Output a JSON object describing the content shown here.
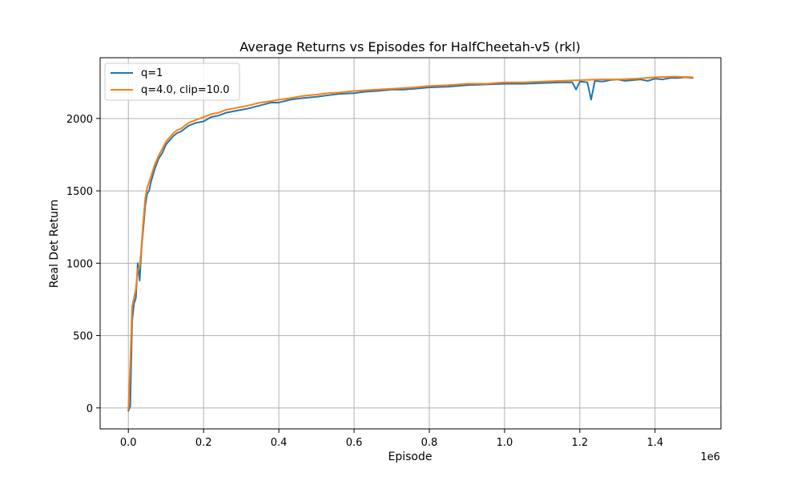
{
  "chart_data": {
    "type": "line",
    "title": "Average Returns vs Episodes for HalfCheetah-v5 (rkl)",
    "xlabel": "Episode",
    "ylabel": "Real Det Return",
    "x_offset_label": "1e6",
    "xlim": [
      -0.075,
      1.575
    ],
    "ylim": [
      -145,
      2420
    ],
    "x_ticks": [
      0.0,
      0.2,
      0.4,
      0.6,
      0.8,
      1.0,
      1.2,
      1.4
    ],
    "x_tick_labels": [
      "0.0",
      "0.2",
      "0.4",
      "0.6",
      "0.8",
      "1.0",
      "1.2",
      "1.4"
    ],
    "y_ticks": [
      0,
      500,
      1000,
      1500,
      2000
    ],
    "y_tick_labels": [
      "0",
      "500",
      "1000",
      "1500",
      "2000"
    ],
    "grid": true,
    "legend_position": "top-left",
    "series": [
      {
        "name": "q=1",
        "color": "#1f77b4",
        "x": [
          0.0,
          0.005,
          0.01,
          0.015,
          0.02,
          0.025,
          0.03,
          0.035,
          0.04,
          0.045,
          0.05,
          0.055,
          0.06,
          0.07,
          0.08,
          0.09,
          0.1,
          0.11,
          0.12,
          0.13,
          0.14,
          0.15,
          0.16,
          0.18,
          0.2,
          0.22,
          0.24,
          0.26,
          0.28,
          0.3,
          0.32,
          0.35,
          0.38,
          0.4,
          0.43,
          0.46,
          0.5,
          0.53,
          0.56,
          0.6,
          0.63,
          0.66,
          0.7,
          0.73,
          0.76,
          0.8,
          0.85,
          0.9,
          0.95,
          1.0,
          1.05,
          1.1,
          1.15,
          1.18,
          1.19,
          1.2,
          1.22,
          1.23,
          1.24,
          1.26,
          1.28,
          1.3,
          1.32,
          1.34,
          1.36,
          1.38,
          1.4,
          1.42,
          1.44,
          1.46,
          1.48,
          1.5
        ],
        "y": [
          -20,
          10,
          600,
          720,
          760,
          1000,
          880,
          1100,
          1250,
          1400,
          1480,
          1500,
          1560,
          1650,
          1720,
          1760,
          1820,
          1850,
          1880,
          1900,
          1910,
          1930,
          1950,
          1970,
          1980,
          2010,
          2020,
          2040,
          2050,
          2060,
          2070,
          2090,
          2110,
          2110,
          2130,
          2140,
          2150,
          2160,
          2170,
          2175,
          2185,
          2190,
          2200,
          2200,
          2205,
          2215,
          2220,
          2230,
          2235,
          2240,
          2240,
          2245,
          2250,
          2250,
          2200,
          2255,
          2250,
          2130,
          2260,
          2255,
          2265,
          2270,
          2260,
          2265,
          2270,
          2260,
          2275,
          2270,
          2280,
          2280,
          2285,
          2280
        ]
      },
      {
        "name": "q=4.0, clip=10.0",
        "color": "#ff7f0e",
        "x": [
          0.0,
          0.005,
          0.01,
          0.015,
          0.02,
          0.025,
          0.03,
          0.035,
          0.04,
          0.045,
          0.05,
          0.055,
          0.06,
          0.07,
          0.08,
          0.09,
          0.1,
          0.11,
          0.12,
          0.13,
          0.14,
          0.15,
          0.16,
          0.18,
          0.2,
          0.22,
          0.24,
          0.26,
          0.28,
          0.3,
          0.32,
          0.35,
          0.38,
          0.4,
          0.43,
          0.46,
          0.5,
          0.53,
          0.56,
          0.6,
          0.63,
          0.66,
          0.7,
          0.73,
          0.76,
          0.8,
          0.85,
          0.9,
          0.95,
          1.0,
          1.05,
          1.1,
          1.15,
          1.2,
          1.25,
          1.3,
          1.35,
          1.4,
          1.45,
          1.5
        ],
        "y": [
          -10,
          300,
          700,
          760,
          820,
          960,
          970,
          1120,
          1300,
          1450,
          1520,
          1560,
          1600,
          1680,
          1740,
          1790,
          1840,
          1870,
          1900,
          1920,
          1930,
          1950,
          1970,
          1990,
          2010,
          2030,
          2040,
          2060,
          2070,
          2080,
          2090,
          2110,
          2120,
          2130,
          2140,
          2155,
          2165,
          2175,
          2180,
          2190,
          2195,
          2200,
          2205,
          2210,
          2215,
          2225,
          2230,
          2240,
          2240,
          2250,
          2250,
          2255,
          2260,
          2265,
          2270,
          2270,
          2275,
          2285,
          2290,
          2285
        ]
      }
    ]
  }
}
